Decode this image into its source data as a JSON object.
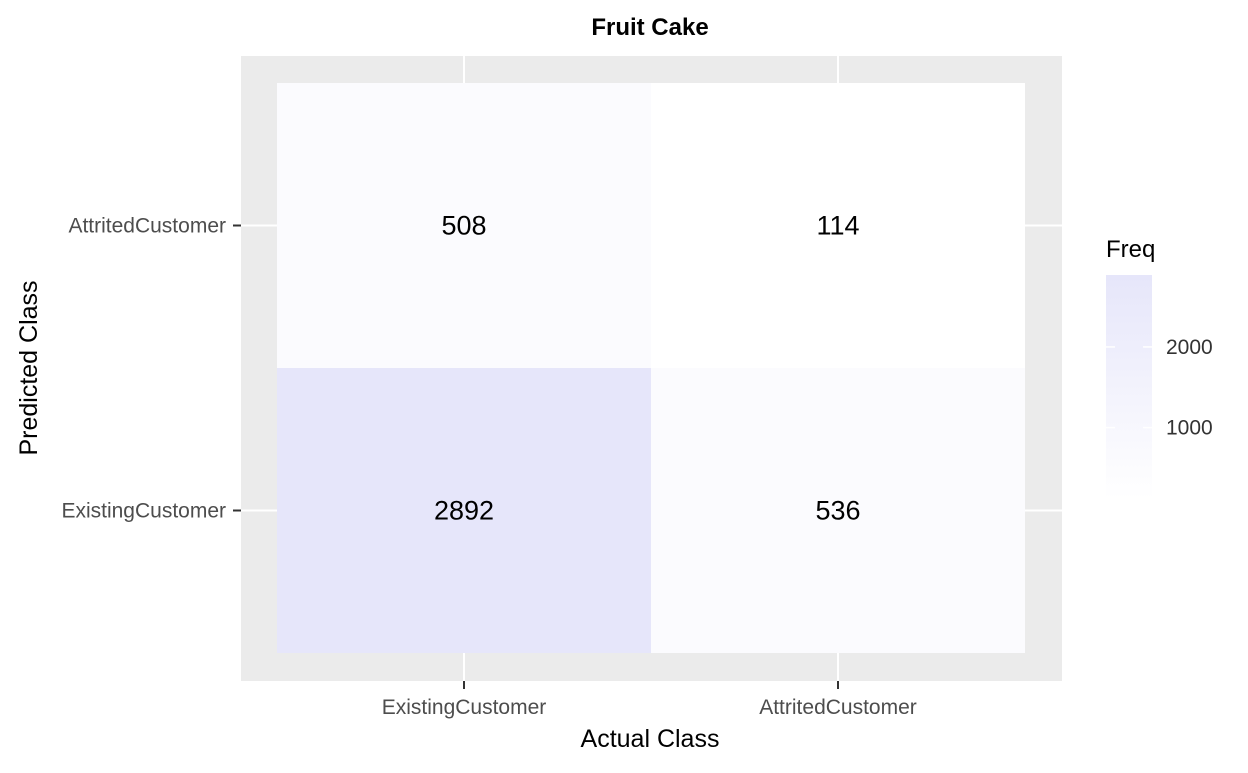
{
  "chart_data": {
    "type": "heatmap",
    "title": "Fruit Cake",
    "xlabel": "Actual Class",
    "ylabel": "Predicted Class",
    "x_categories": [
      "ExistingCustomer",
      "AttritedCustomer"
    ],
    "y_categories": [
      "ExistingCustomer",
      "AttritedCustomer"
    ],
    "cells": [
      {
        "x": "ExistingCustomer",
        "y": "AttritedCustomer",
        "value": 508
      },
      {
        "x": "AttritedCustomer",
        "y": "AttritedCustomer",
        "value": 114
      },
      {
        "x": "ExistingCustomer",
        "y": "ExistingCustomer",
        "value": 2892
      },
      {
        "x": "AttritedCustomer",
        "y": "ExistingCustomer",
        "value": 536
      }
    ],
    "legend": {
      "title": "Freq",
      "ticks": [
        1000,
        2000
      ],
      "range": [
        114,
        2892
      ],
      "position": "right"
    },
    "colors": {
      "low": "#ffffff",
      "high": "#e6e6fa",
      "panel_background": "#ebebeb",
      "grid": "#ffffff"
    },
    "grid": true
  }
}
